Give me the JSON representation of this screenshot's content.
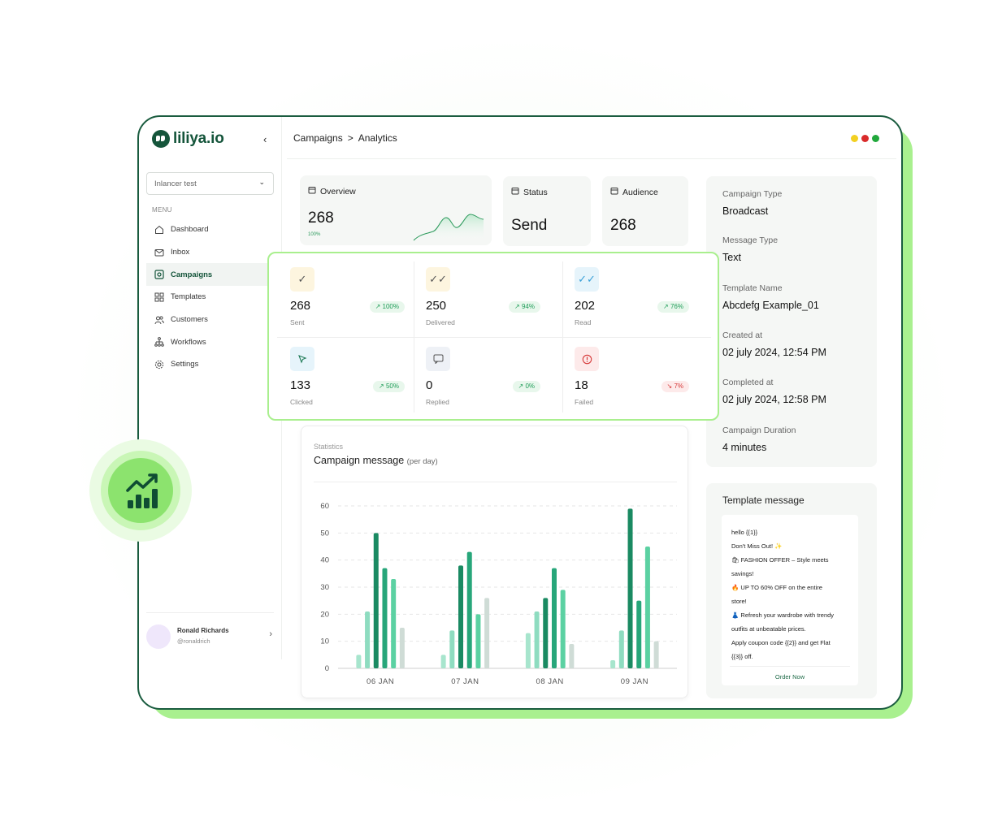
{
  "app": {
    "brand": "liliya.io",
    "collapse_icon": "chevron-left-icon",
    "workspace": "Inlancer test",
    "menu_caption": "MENU",
    "window_dots": [
      "#f2d022",
      "#d92b2b",
      "#21a83c"
    ]
  },
  "sidebar": {
    "items": [
      {
        "label": "Dashboard",
        "icon": "home-icon",
        "active": false
      },
      {
        "label": "Inbox",
        "icon": "mail-icon",
        "active": false
      },
      {
        "label": "Campaigns",
        "icon": "campaign-icon",
        "active": true
      },
      {
        "label": "Templates",
        "icon": "grid-icon",
        "active": false
      },
      {
        "label": "Customers",
        "icon": "users-icon",
        "active": false
      },
      {
        "label": "Workflows",
        "icon": "workflow-icon",
        "active": false
      },
      {
        "label": "Settings",
        "icon": "gear-icon",
        "active": false
      }
    ]
  },
  "user": {
    "name": "Ronald Richards",
    "handle": "@ronaldrich"
  },
  "breadcrumb": {
    "parent": "Campaigns",
    "sep": ">",
    "current": "Analytics"
  },
  "overview": {
    "title": "Overview",
    "value": "268",
    "percent": "100%"
  },
  "status": {
    "title": "Status",
    "value": "Send"
  },
  "audience": {
    "title": "Audience",
    "value": "268"
  },
  "metrics": [
    {
      "value": "268",
      "label": "Sent",
      "badge": "100%",
      "icon": "check-icon",
      "trend": "up"
    },
    {
      "value": "250",
      "label": "Delivered",
      "badge": "94%",
      "icon": "double-check-icon",
      "trend": "up"
    },
    {
      "value": "202",
      "label": "Read",
      "badge": "76%",
      "icon": "double-check-blue-icon",
      "trend": "up"
    },
    {
      "value": "133",
      "label": "Clicked",
      "badge": "50%",
      "icon": "cursor-icon",
      "trend": "up"
    },
    {
      "value": "0",
      "label": "Replied",
      "badge": "0%",
      "icon": "reply-icon",
      "trend": "up"
    },
    {
      "value": "18",
      "label": "Failed",
      "badge": "7%",
      "icon": "alert-icon",
      "trend": "down"
    }
  ],
  "stats": {
    "caption": "Statistics",
    "title": "Campaign message",
    "subtitle": "(per day)"
  },
  "chart_data": {
    "type": "bar",
    "categories": [
      "06 JAN",
      "07 JAN",
      "08 JAN",
      "09 JAN"
    ],
    "ylim": [
      0,
      60
    ],
    "yticks": [
      0,
      10,
      20,
      30,
      40,
      50,
      60
    ],
    "grid": true,
    "series": [
      {
        "values": [
          5,
          5,
          13,
          3
        ],
        "color": "#a7e5cd"
      },
      {
        "values": [
          21,
          14,
          21,
          14
        ],
        "color": "#8edcc0"
      },
      {
        "values": [
          50,
          38,
          26,
          59
        ],
        "color": "#1a8a62"
      },
      {
        "values": [
          37,
          43,
          37,
          25
        ],
        "color": "#27a67a"
      },
      {
        "values": [
          33,
          20,
          29,
          45
        ],
        "color": "#5bd1a2"
      },
      {
        "values": [
          15,
          26,
          9,
          10
        ],
        "color": "#cfdcd6"
      }
    ]
  },
  "info": {
    "rows": [
      {
        "label": "Campaign Type",
        "value": "Broadcast"
      },
      {
        "label": "Message Type",
        "value": "Text"
      },
      {
        "label": "Template Name",
        "value": "Abcdefg Example_01"
      },
      {
        "label": "Created at",
        "value": "02 july 2024, 12:54 PM"
      },
      {
        "label": "Completed at",
        "value": "02 july 2024, 12:58 PM"
      },
      {
        "label": "Campaign Duration",
        "value": "4 minutes"
      }
    ]
  },
  "template": {
    "title": "Template message",
    "lines": [
      "hello {{1}}",
      "Don't Miss Out! ✨",
      "🛍 FASHION OFFER – Style meets",
      "savings!",
      "🔥 UP TO 60% OFF on the entire",
      "store!",
      "👗 Refresh your wardrobe with trendy",
      "outfits at unbeatable prices.",
      "Apply coupon code {{2}} and get Flat",
      "{{3}} off."
    ],
    "cta": "Order Now"
  },
  "floating_badge": {
    "icon": "bar-chart-trend-icon"
  }
}
